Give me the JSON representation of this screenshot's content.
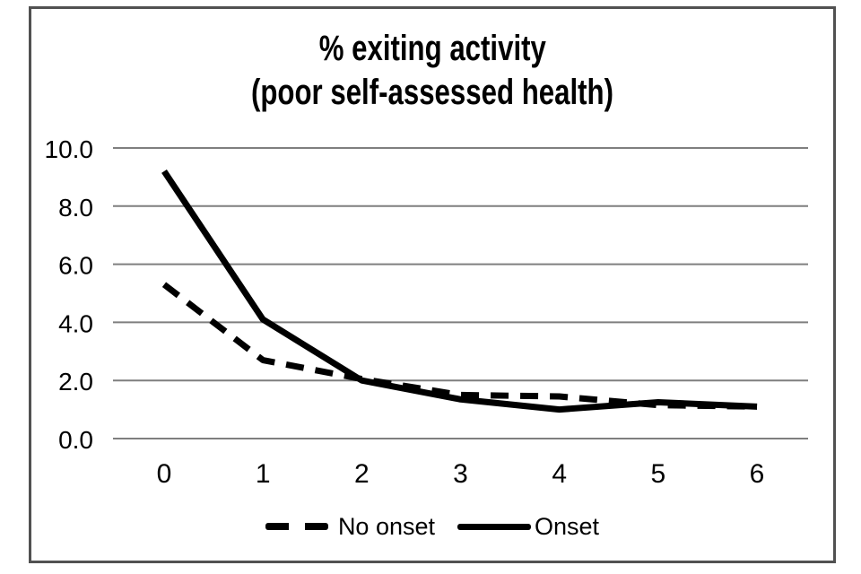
{
  "chart_data": {
    "type": "line",
    "title": "% exiting activity (poor self-assessed health)",
    "title_lines": [
      "% exiting activity",
      "(poor self-assessed health)"
    ],
    "x": [
      0,
      1,
      2,
      3,
      4,
      5,
      6
    ],
    "x_tick_labels": [
      "0",
      "1",
      "2",
      "3",
      "4",
      "5",
      "6"
    ],
    "series": [
      {
        "name": "No onset",
        "style": "dashed",
        "color": "#000000",
        "values": [
          5.3,
          2.7,
          2.05,
          1.5,
          1.45,
          1.15,
          1.1
        ]
      },
      {
        "name": "Onset",
        "style": "solid",
        "color": "#000000",
        "values": [
          9.2,
          4.1,
          2.0,
          1.35,
          1.0,
          1.25,
          1.1
        ]
      }
    ],
    "xlabel": "",
    "ylabel": "",
    "ylim": [
      0,
      10
    ],
    "yticks": [
      0,
      2,
      4,
      6,
      8,
      10
    ],
    "ytick_labels": [
      "0.0",
      "2.0",
      "4.0",
      "6.0",
      "8.0",
      "10.0"
    ],
    "grid": "horizontal",
    "gridline_color": "#7f7f7f",
    "frame_border_color": "#515151",
    "line_color": "#000000",
    "background": "#ffffff",
    "legend_position": "bottom-center"
  }
}
